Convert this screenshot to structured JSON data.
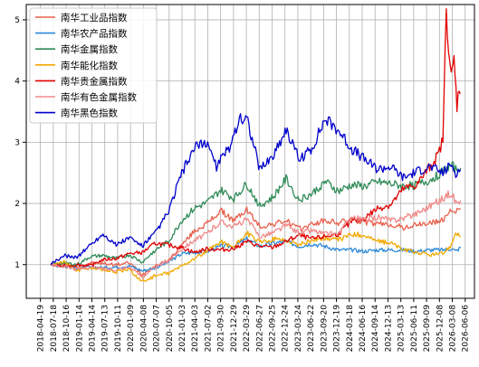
{
  "chart_data": {
    "type": "line",
    "grid": true,
    "legend_position": "top-left",
    "ylim": [
      0.45,
      5.25
    ],
    "y_ticks": [
      1,
      2,
      3,
      4,
      5
    ],
    "x_range": [
      "2018-01-10",
      "2026-08-10"
    ],
    "x_ticks": [
      "2018-04-19",
      "2018-07-18",
      "2018-10-16",
      "2019-01-14",
      "2019-04-14",
      "2019-07-13",
      "2019-10-11",
      "2020-01-09",
      "2020-04-08",
      "2020-07-07",
      "2020-10-05",
      "2021-01-03",
      "2021-04-03",
      "2021-07-02",
      "2021-09-30",
      "2021-12-29",
      "2022-03-29",
      "2022-06-27",
      "2022-09-25",
      "2022-12-24",
      "2023-03-24",
      "2023-06-22",
      "2023-09-20",
      "2023-12-19",
      "2024-03-18",
      "2024-06-16",
      "2024-09-14",
      "2024-12-13",
      "2025-03-13",
      "2025-06-11",
      "2025-09-09",
      "2025-12-08",
      "2026-03-08",
      "2026-06-06"
    ],
    "series": [
      {
        "name": "南华工业品指数",
        "color": "#e8604c",
        "points": [
          [
            "2018-07-01",
            1.0
          ],
          [
            "2018-10-01",
            1.01
          ],
          [
            "2019-01-01",
            0.95
          ],
          [
            "2019-04-01",
            1.03
          ],
          [
            "2019-07-01",
            1.02
          ],
          [
            "2019-10-01",
            1.0
          ],
          [
            "2020-01-01",
            1.03
          ],
          [
            "2020-04-01",
            0.84
          ],
          [
            "2020-07-01",
            0.98
          ],
          [
            "2020-10-01",
            1.07
          ],
          [
            "2021-01-01",
            1.32
          ],
          [
            "2021-04-01",
            1.55
          ],
          [
            "2021-07-01",
            1.68
          ],
          [
            "2021-10-01",
            1.88
          ],
          [
            "2022-01-01",
            1.72
          ],
          [
            "2022-04-01",
            1.9
          ],
          [
            "2022-07-01",
            1.62
          ],
          [
            "2022-10-01",
            1.66
          ],
          [
            "2023-01-01",
            1.72
          ],
          [
            "2023-04-01",
            1.58
          ],
          [
            "2023-07-01",
            1.66
          ],
          [
            "2023-10-01",
            1.72
          ],
          [
            "2024-01-01",
            1.68
          ],
          [
            "2024-04-01",
            1.74
          ],
          [
            "2024-07-01",
            1.7
          ],
          [
            "2024-10-01",
            1.66
          ],
          [
            "2025-01-01",
            1.66
          ],
          [
            "2025-04-01",
            1.6
          ],
          [
            "2025-07-01",
            1.65
          ],
          [
            "2025-10-01",
            1.68
          ],
          [
            "2026-01-01",
            1.72
          ],
          [
            "2026-03-01",
            1.92
          ],
          [
            "2026-04-01",
            1.85
          ],
          [
            "2026-05-05",
            1.92
          ]
        ]
      },
      {
        "name": "南华农产品指数",
        "color": "#2c89d9",
        "points": [
          [
            "2018-07-01",
            1.0
          ],
          [
            "2018-10-01",
            0.97
          ],
          [
            "2019-01-01",
            0.94
          ],
          [
            "2019-04-01",
            0.96
          ],
          [
            "2019-07-01",
            0.95
          ],
          [
            "2019-10-01",
            0.96
          ],
          [
            "2020-01-01",
            0.98
          ],
          [
            "2020-04-01",
            0.9
          ],
          [
            "2020-07-01",
            0.95
          ],
          [
            "2020-10-01",
            1.04
          ],
          [
            "2021-01-01",
            1.18
          ],
          [
            "2021-04-01",
            1.2
          ],
          [
            "2021-07-01",
            1.22
          ],
          [
            "2021-10-01",
            1.3
          ],
          [
            "2022-01-01",
            1.3
          ],
          [
            "2022-04-01",
            1.42
          ],
          [
            "2022-07-01",
            1.3
          ],
          [
            "2022-10-01",
            1.35
          ],
          [
            "2023-01-01",
            1.38
          ],
          [
            "2023-04-01",
            1.3
          ],
          [
            "2023-07-01",
            1.34
          ],
          [
            "2023-10-01",
            1.3
          ],
          [
            "2024-01-01",
            1.24
          ],
          [
            "2024-04-01",
            1.24
          ],
          [
            "2024-07-01",
            1.22
          ],
          [
            "2024-10-01",
            1.24
          ],
          [
            "2025-01-01",
            1.24
          ],
          [
            "2025-04-01",
            1.24
          ],
          [
            "2025-07-01",
            1.22
          ],
          [
            "2025-10-01",
            1.24
          ],
          [
            "2026-01-01",
            1.24
          ],
          [
            "2026-03-01",
            1.26
          ],
          [
            "2026-04-01",
            1.22
          ],
          [
            "2026-05-05",
            1.28
          ]
        ]
      },
      {
        "name": "南华金属指数",
        "color": "#2e8b57",
        "points": [
          [
            "2018-07-01",
            1.0
          ],
          [
            "2018-10-01",
            1.03
          ],
          [
            "2019-01-01",
            1.0
          ],
          [
            "2019-04-01",
            1.13
          ],
          [
            "2019-07-01",
            1.15
          ],
          [
            "2019-10-01",
            1.1
          ],
          [
            "2020-01-01",
            1.16
          ],
          [
            "2020-04-01",
            1.04
          ],
          [
            "2020-07-01",
            1.24
          ],
          [
            "2020-10-01",
            1.38
          ],
          [
            "2021-01-01",
            1.72
          ],
          [
            "2021-04-01",
            1.92
          ],
          [
            "2021-07-01",
            2.02
          ],
          [
            "2021-10-01",
            2.22
          ],
          [
            "2022-01-01",
            2.08
          ],
          [
            "2022-04-01",
            2.32
          ],
          [
            "2022-07-01",
            1.96
          ],
          [
            "2022-10-01",
            2.1
          ],
          [
            "2023-01-01",
            2.4
          ],
          [
            "2023-04-01",
            2.06
          ],
          [
            "2023-07-01",
            2.16
          ],
          [
            "2023-10-01",
            2.36
          ],
          [
            "2024-01-01",
            2.2
          ],
          [
            "2024-04-01",
            2.3
          ],
          [
            "2024-07-01",
            2.28
          ],
          [
            "2024-10-01",
            2.35
          ],
          [
            "2025-01-01",
            2.32
          ],
          [
            "2025-04-01",
            2.28
          ],
          [
            "2025-07-01",
            2.3
          ],
          [
            "2025-10-01",
            2.38
          ],
          [
            "2026-01-01",
            2.52
          ],
          [
            "2026-03-01",
            2.62
          ],
          [
            "2026-04-01",
            2.55
          ],
          [
            "2026-05-05",
            2.58
          ]
        ]
      },
      {
        "name": "南华能化指数",
        "color": "#f2a900",
        "points": [
          [
            "2018-07-01",
            1.0
          ],
          [
            "2018-10-01",
            1.05
          ],
          [
            "2019-01-01",
            0.9
          ],
          [
            "2019-04-01",
            0.95
          ],
          [
            "2019-07-01",
            0.92
          ],
          [
            "2019-10-01",
            0.88
          ],
          [
            "2020-01-01",
            0.92
          ],
          [
            "2020-04-01",
            0.72
          ],
          [
            "2020-07-01",
            0.82
          ],
          [
            "2020-10-01",
            0.86
          ],
          [
            "2021-01-01",
            0.98
          ],
          [
            "2021-04-01",
            1.1
          ],
          [
            "2021-07-01",
            1.22
          ],
          [
            "2021-10-01",
            1.38
          ],
          [
            "2022-01-01",
            1.28
          ],
          [
            "2022-04-01",
            1.52
          ],
          [
            "2022-07-01",
            1.36
          ],
          [
            "2022-10-01",
            1.42
          ],
          [
            "2023-01-01",
            1.4
          ],
          [
            "2023-04-01",
            1.32
          ],
          [
            "2023-07-01",
            1.4
          ],
          [
            "2023-10-01",
            1.44
          ],
          [
            "2024-01-01",
            1.4
          ],
          [
            "2024-04-01",
            1.5
          ],
          [
            "2024-07-01",
            1.48
          ],
          [
            "2024-10-01",
            1.38
          ],
          [
            "2025-01-01",
            1.36
          ],
          [
            "2025-04-01",
            1.24
          ],
          [
            "2025-07-01",
            1.2
          ],
          [
            "2025-10-01",
            1.16
          ],
          [
            "2026-01-01",
            1.18
          ],
          [
            "2026-03-01",
            1.32
          ],
          [
            "2026-04-01",
            1.54
          ],
          [
            "2026-05-05",
            1.45
          ]
        ]
      },
      {
        "name": "南华贵金属指数",
        "color": "#e00000",
        "points": [
          [
            "2018-07-01",
            1.0
          ],
          [
            "2018-10-01",
            0.97
          ],
          [
            "2019-01-01",
            1.0
          ],
          [
            "2019-04-01",
            0.98
          ],
          [
            "2019-07-01",
            1.08
          ],
          [
            "2019-10-01",
            1.1
          ],
          [
            "2020-01-01",
            1.18
          ],
          [
            "2020-04-01",
            1.2
          ],
          [
            "2020-07-01",
            1.35
          ],
          [
            "2020-10-01",
            1.32
          ],
          [
            "2021-01-01",
            1.28
          ],
          [
            "2021-04-01",
            1.2
          ],
          [
            "2021-07-01",
            1.26
          ],
          [
            "2021-10-01",
            1.24
          ],
          [
            "2022-01-01",
            1.26
          ],
          [
            "2022-04-01",
            1.38
          ],
          [
            "2022-07-01",
            1.3
          ],
          [
            "2022-10-01",
            1.28
          ],
          [
            "2023-01-01",
            1.38
          ],
          [
            "2023-04-01",
            1.48
          ],
          [
            "2023-07-01",
            1.42
          ],
          [
            "2023-10-01",
            1.46
          ],
          [
            "2024-01-01",
            1.5
          ],
          [
            "2024-04-01",
            1.7
          ],
          [
            "2024-07-01",
            1.76
          ],
          [
            "2024-10-01",
            1.92
          ],
          [
            "2025-01-01",
            1.98
          ],
          [
            "2025-04-01",
            2.24
          ],
          [
            "2025-07-01",
            2.3
          ],
          [
            "2025-10-01",
            2.6
          ],
          [
            "2025-12-01",
            2.8
          ],
          [
            "2026-01-01",
            3.05
          ],
          [
            "2026-01-25",
            5.15
          ],
          [
            "2026-02-10",
            4.6
          ],
          [
            "2026-03-01",
            4.05
          ],
          [
            "2026-03-20",
            4.35
          ],
          [
            "2026-04-10",
            3.6
          ],
          [
            "2026-04-25",
            3.9
          ],
          [
            "2026-05-05",
            3.8
          ]
        ]
      },
      {
        "name": "南华有色金属指数",
        "color": "#f08a8a",
        "points": [
          [
            "2018-07-01",
            1.0
          ],
          [
            "2018-10-01",
            0.98
          ],
          [
            "2019-01-01",
            0.92
          ],
          [
            "2019-04-01",
            0.96
          ],
          [
            "2019-07-01",
            0.93
          ],
          [
            "2019-10-01",
            0.92
          ],
          [
            "2020-01-01",
            0.96
          ],
          [
            "2020-04-01",
            0.8
          ],
          [
            "2020-07-01",
            0.96
          ],
          [
            "2020-10-01",
            1.06
          ],
          [
            "2021-01-01",
            1.26
          ],
          [
            "2021-04-01",
            1.4
          ],
          [
            "2021-07-01",
            1.52
          ],
          [
            "2021-10-01",
            1.7
          ],
          [
            "2022-01-01",
            1.62
          ],
          [
            "2022-04-01",
            1.74
          ],
          [
            "2022-07-01",
            1.46
          ],
          [
            "2022-10-01",
            1.52
          ],
          [
            "2023-01-01",
            1.64
          ],
          [
            "2023-04-01",
            1.52
          ],
          [
            "2023-07-01",
            1.56
          ],
          [
            "2023-10-01",
            1.5
          ],
          [
            "2024-01-01",
            1.5
          ],
          [
            "2024-04-01",
            1.78
          ],
          [
            "2024-07-01",
            1.72
          ],
          [
            "2024-10-01",
            1.78
          ],
          [
            "2025-01-01",
            1.72
          ],
          [
            "2025-04-01",
            1.76
          ],
          [
            "2025-07-01",
            1.84
          ],
          [
            "2025-10-01",
            1.96
          ],
          [
            "2026-01-01",
            2.08
          ],
          [
            "2026-03-01",
            2.18
          ],
          [
            "2026-04-01",
            2.02
          ],
          [
            "2026-05-05",
            2.05
          ]
        ]
      },
      {
        "name": "南华黑色指数",
        "color": "#0000cc",
        "points": [
          [
            "2018-07-01",
            1.0
          ],
          [
            "2018-10-01",
            1.15
          ],
          [
            "2019-01-01",
            1.12
          ],
          [
            "2019-04-01",
            1.32
          ],
          [
            "2019-07-01",
            1.5
          ],
          [
            "2019-10-01",
            1.32
          ],
          [
            "2020-01-01",
            1.44
          ],
          [
            "2020-04-01",
            1.3
          ],
          [
            "2020-07-01",
            1.52
          ],
          [
            "2020-10-01",
            1.86
          ],
          [
            "2021-01-01",
            2.5
          ],
          [
            "2021-04-01",
            2.9
          ],
          [
            "2021-07-01",
            3.0
          ],
          [
            "2021-09-01",
            2.6
          ],
          [
            "2021-12-01",
            2.92
          ],
          [
            "2022-02-01",
            3.35
          ],
          [
            "2022-04-01",
            3.42
          ],
          [
            "2022-07-01",
            2.56
          ],
          [
            "2022-10-01",
            2.78
          ],
          [
            "2023-01-01",
            3.22
          ],
          [
            "2023-04-01",
            2.72
          ],
          [
            "2023-07-01",
            2.9
          ],
          [
            "2023-10-01",
            3.38
          ],
          [
            "2024-01-01",
            3.2
          ],
          [
            "2024-04-01",
            2.9
          ],
          [
            "2024-07-01",
            2.72
          ],
          [
            "2024-10-01",
            2.56
          ],
          [
            "2025-01-01",
            2.6
          ],
          [
            "2025-04-01",
            2.42
          ],
          [
            "2025-07-01",
            2.52
          ],
          [
            "2025-10-01",
            2.6
          ],
          [
            "2026-01-01",
            2.5
          ],
          [
            "2026-03-01",
            2.64
          ],
          [
            "2026-04-01",
            2.5
          ],
          [
            "2026-05-05",
            2.55
          ]
        ]
      }
    ]
  }
}
